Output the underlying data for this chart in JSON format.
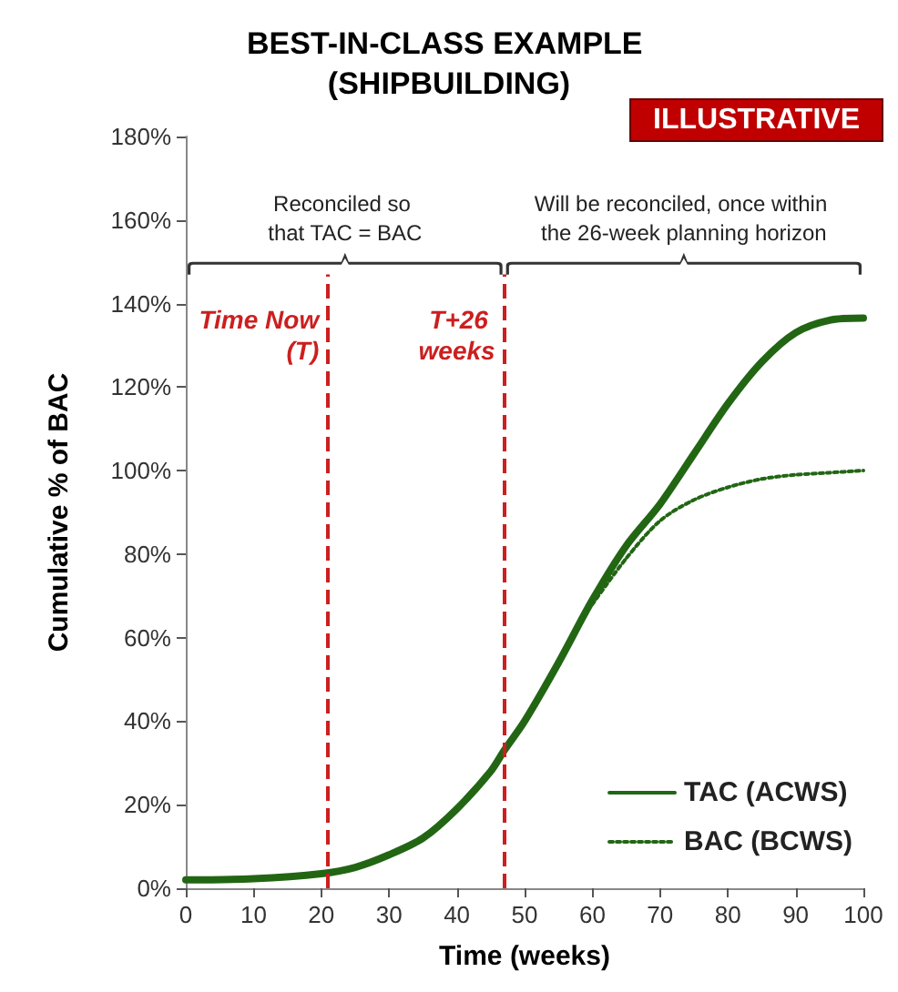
{
  "chart_data": {
    "type": "line",
    "title": "BEST-IN-CLASS EXAMPLE (SHIPBUILDING)",
    "xlabel": "Time (weeks)",
    "ylabel": "Cumulative % of BAC",
    "annotations": [
      "ILLUSTRATIVE",
      "Reconciled so that TAC = BAC",
      "Will be reconciled, once within the 26-week planning horizon"
    ],
    "series": [
      {
        "name": "TAC (ACWS)",
        "color": "#226614",
        "line_style": "solid",
        "x": [
          0,
          10,
          20,
          25,
          30,
          35,
          40,
          45,
          47,
          50,
          55,
          60,
          65,
          70,
          75,
          80,
          85,
          90,
          95,
          100
        ],
        "values": [
          2,
          2.3,
          3.5,
          5,
          8,
          12,
          19,
          28,
          33,
          40,
          54,
          69,
          82,
          92,
          104,
          116,
          126,
          133,
          136,
          136.5
        ]
      },
      {
        "name": "BAC (BCWS)",
        "color": "#226614",
        "line_style": "dotted",
        "x": [
          60,
          65,
          70,
          75,
          80,
          85,
          90,
          95,
          100
        ],
        "values": [
          68,
          79,
          88,
          93,
          96,
          98,
          99,
          99.5,
          100
        ]
      }
    ],
    "xlim": [
      0,
      100
    ],
    "xticks": [
      0,
      10,
      20,
      30,
      40,
      50,
      60,
      70,
      80,
      90,
      100
    ],
    "ylim": [
      0,
      180
    ],
    "yticks": [
      {
        "value": 0,
        "label": "0%"
      },
      {
        "value": 20,
        "label": "20%"
      },
      {
        "value": 40,
        "label": "40%"
      },
      {
        "value": 60,
        "label": "60%"
      },
      {
        "value": 80,
        "label": "80%"
      },
      {
        "value": 100,
        "label": "100%"
      },
      {
        "value": 120,
        "label": "120%"
      },
      {
        "value": 140,
        "label": "140%"
      },
      {
        "value": 160,
        "label": "160%"
      },
      {
        "value": 180,
        "label": "180%"
      }
    ],
    "ref_lines": [
      {
        "axis": "x",
        "value": 21,
        "label": "Time Now (T)",
        "color": "#cc1f1f",
        "line_style": "dashed"
      },
      {
        "axis": "x",
        "value": 47,
        "label": "T+26 weeks",
        "color": "#cc1f1f",
        "line_style": "dashed"
      }
    ],
    "grid": false,
    "legend": "bottom right",
    "marker": "none"
  }
}
